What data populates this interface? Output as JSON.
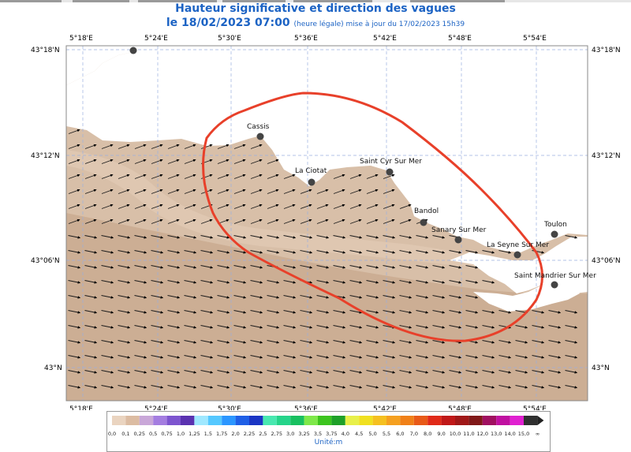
{
  "header": {
    "title": "Hauteur significative et direction des vagues",
    "date": "le 18/02/2023 07:00",
    "subtitle": "(heure légale) mise à jour du 17/02/2023 15h39"
  },
  "map": {
    "lon_labels": [
      "5°18'E",
      "5°24'E",
      "5°30'E",
      "5°36'E",
      "5°42'E",
      "5°48'E",
      "5°54'E"
    ],
    "lat_labels": [
      "43°18'N",
      "43°12'N",
      "43°06'N",
      "43°N"
    ],
    "cities": [
      {
        "name": "Cassis"
      },
      {
        "name": "La Ciotat"
      },
      {
        "name": "Saint Cyr Sur Mer"
      },
      {
        "name": "Bandol"
      },
      {
        "name": "Sanary Sur Mer"
      },
      {
        "name": "La Seyne Sur Mer"
      },
      {
        "name": "Toulon"
      },
      {
        "name": "Saint Mandrier Sur Mer"
      }
    ],
    "sea_color": "#d8bfa8",
    "land_color": "#ffffff",
    "highlight_color": "#e8402a"
  },
  "legend": {
    "values": [
      "0,0",
      "0,1",
      "0,25",
      "0,5",
      "0,75",
      "1,0",
      "1,25",
      "1,5",
      "1,75",
      "2,0",
      "2,25",
      "2,5",
      "2,75",
      "3,0",
      "3,25",
      "3,5",
      "3,75",
      "4,0",
      "4,5",
      "5,0",
      "5,5",
      "6,0",
      "7,0",
      "8,0",
      "9,0",
      "10,0",
      "11,0",
      "12,0",
      "13,0",
      "14,0",
      "15,0",
      "∞"
    ],
    "colors": [
      "#ead4c0",
      "#dcbca2",
      "#c9a7d8",
      "#a47de0",
      "#7d55cf",
      "#5a32b0",
      "#9fe8ff",
      "#55c8ff",
      "#2b96ff",
      "#1f5fe6",
      "#1a35c4",
      "#48e8b0",
      "#25d48a",
      "#18c060",
      "#7ee84a",
      "#3cc41e",
      "#1ea028",
      "#e8f04a",
      "#f0e020",
      "#f5c020",
      "#f5a020",
      "#f08018",
      "#e85a18",
      "#e02a18",
      "#c01818",
      "#a01818",
      "#801818",
      "#a01060",
      "#c010a0",
      "#e020d0",
      "#303030"
    ],
    "unit": "Unité:m"
  }
}
